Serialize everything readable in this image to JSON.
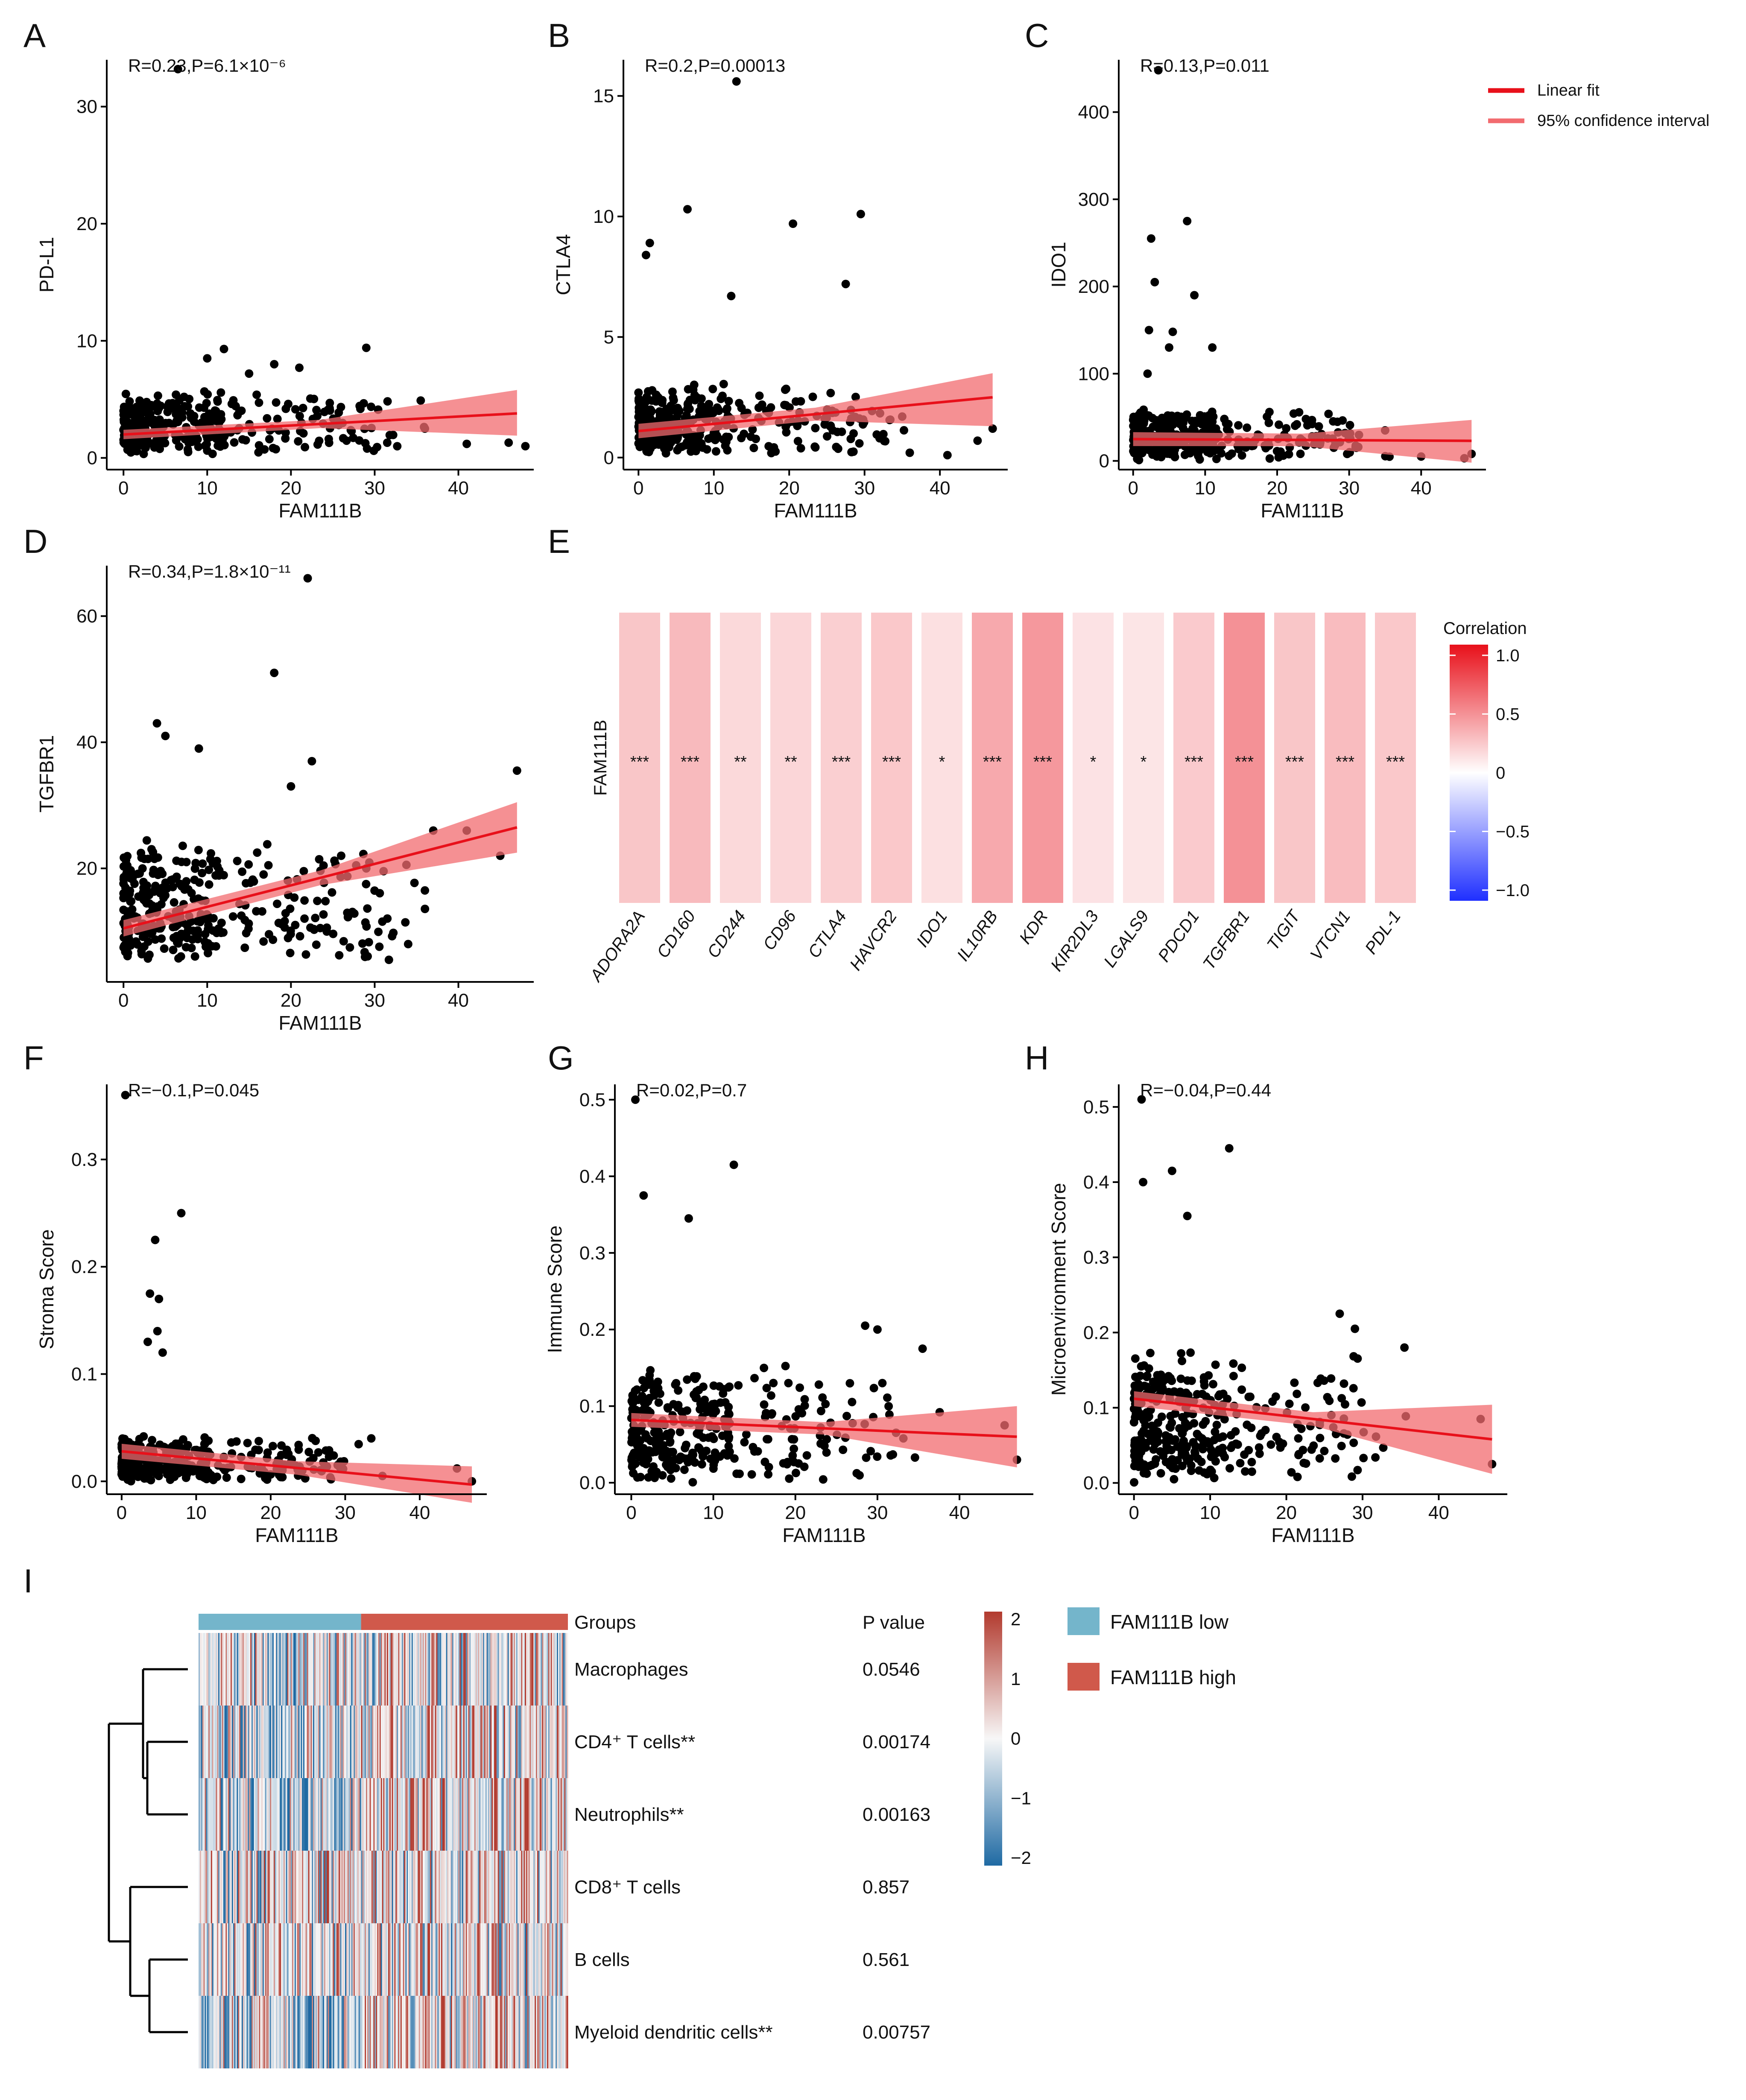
{
  "colors": {
    "fit_line": "#e8101a",
    "ci_band": "#f26b6f",
    "point": "#000000",
    "heat_pos": "#e8101a",
    "heat_neg": "#1f2fff",
    "group_low": "#74b5cb",
    "group_high": "#d0594b",
    "hm_high": "#b23a2e",
    "hm_low": "#1f6aa3"
  },
  "legend": {
    "fit_label": "Linear fit",
    "ci_label": "95% confidence interval"
  },
  "chart_data": [
    {
      "panel": "A",
      "type": "scatter",
      "title": "",
      "stat": "R=0.23,P=6.1×10⁻⁶",
      "xlabel": "FAM111B",
      "ylabel": "PD-L1",
      "xlim": [
        -2,
        49
      ],
      "ylim": [
        -1,
        34
      ],
      "xticks": [
        0,
        10,
        20,
        30,
        40
      ],
      "yticks": [
        0,
        10,
        20,
        30
      ],
      "fit": {
        "x": [
          0,
          47
        ],
        "y": [
          2.0,
          3.8
        ]
      },
      "ci": {
        "lower": [
          1.6,
          1.9
        ],
        "upper": [
          2.4,
          5.8
        ]
      },
      "n_points": 340,
      "seed": 11,
      "base": 0.2,
      "scale": 2.5,
      "cap": 9.6,
      "outliers": [
        [
          6.5,
          33.2
        ],
        [
          10,
          8.5
        ],
        [
          12,
          9.3
        ],
        [
          15,
          7.2
        ],
        [
          18,
          8.0
        ],
        [
          21,
          7.7
        ],
        [
          29,
          9.4
        ],
        [
          35.5,
          4.9
        ],
        [
          36,
          2.5
        ],
        [
          41,
          1.2
        ],
        [
          46,
          1.3
        ],
        [
          48,
          1.0
        ]
      ]
    },
    {
      "panel": "B",
      "type": "scatter",
      "title": "",
      "stat": "R=0.2,P=0.00013",
      "xlabel": "FAM111B",
      "ylabel": "CTLA4",
      "xlim": [
        -2,
        49
      ],
      "ylim": [
        -0.5,
        16.5
      ],
      "xticks": [
        0,
        10,
        20,
        30,
        40
      ],
      "yticks": [
        0,
        5,
        10,
        15
      ],
      "fit": {
        "x": [
          0,
          47
        ],
        "y": [
          1.1,
          2.5
        ]
      },
      "ci": {
        "lower": [
          0.8,
          1.3
        ],
        "upper": [
          1.4,
          3.5
        ]
      },
      "n_points": 340,
      "seed": 23,
      "base": 0.05,
      "scale": 1.4,
      "cap": 5.4,
      "outliers": [
        [
          1,
          8.4
        ],
        [
          1.5,
          8.9
        ],
        [
          6.5,
          10.3
        ],
        [
          12.3,
          6.7
        ],
        [
          13,
          15.6
        ],
        [
          20.5,
          9.7
        ],
        [
          27.5,
          7.2
        ],
        [
          29.5,
          10.1
        ],
        [
          32,
          0.8
        ],
        [
          35,
          1.7
        ],
        [
          36,
          0.2
        ],
        [
          41,
          0.1
        ],
        [
          45,
          0.7
        ],
        [
          47,
          1.2
        ]
      ]
    },
    {
      "panel": "C",
      "type": "scatter",
      "title": "",
      "stat": "R=0.13,P=0.011",
      "xlabel": "FAM111B",
      "ylabel": "IDO1",
      "xlim": [
        -2,
        49
      ],
      "ylim": [
        -10,
        460
      ],
      "xticks": [
        0,
        10,
        20,
        30,
        40
      ],
      "yticks": [
        0,
        100,
        200,
        300,
        400
      ],
      "fit": {
        "x": [
          0,
          47
        ],
        "y": [
          25,
          23
        ]
      },
      "ci": {
        "lower": [
          17,
          -2
        ],
        "upper": [
          33,
          47
        ]
      },
      "n_points": 340,
      "seed": 37,
      "base": 0.5,
      "scale": 28,
      "cap": 80,
      "outliers": [
        [
          2,
          100
        ],
        [
          2.2,
          150
        ],
        [
          2.5,
          255
        ],
        [
          3,
          205
        ],
        [
          3.5,
          448
        ],
        [
          5,
          130
        ],
        [
          5.5,
          148
        ],
        [
          7.5,
          275
        ],
        [
          8.5,
          190
        ],
        [
          11,
          130
        ],
        [
          21,
          30
        ],
        [
          24,
          48
        ],
        [
          31,
          15
        ],
        [
          35,
          35
        ],
        [
          40,
          5
        ],
        [
          46,
          3
        ],
        [
          47,
          8
        ]
      ]
    },
    {
      "panel": "D",
      "type": "scatter",
      "title": "",
      "stat": "R=0.34,P=1.8×10⁻¹¹",
      "xlabel": "FAM111B",
      "ylabel": "TGFBR1",
      "xlim": [
        -2,
        49
      ],
      "ylim": [
        2,
        68
      ],
      "xticks": [
        0,
        10,
        20,
        30,
        40
      ],
      "yticks": [
        20,
        40,
        60
      ],
      "fit": {
        "x": [
          0,
          47
        ],
        "y": [
          10.5,
          26.5
        ]
      },
      "ci": {
        "lower": [
          9.2,
          22.5
        ],
        "upper": [
          11.8,
          30.5
        ]
      },
      "n_points": 340,
      "seed": 51,
      "base": 5,
      "scale": 9,
      "cap": 30,
      "outliers": [
        [
          4,
          43
        ],
        [
          5,
          41
        ],
        [
          9,
          39
        ],
        [
          18,
          51
        ],
        [
          22,
          66
        ],
        [
          22.5,
          37
        ],
        [
          20,
          33
        ],
        [
          26,
          22
        ],
        [
          29,
          20
        ],
        [
          34,
          8
        ],
        [
          36,
          16.5
        ],
        [
          37,
          26
        ],
        [
          41,
          26
        ],
        [
          45,
          22
        ],
        [
          47,
          35.5
        ]
      ]
    },
    {
      "panel": "E",
      "type": "heatmap",
      "title": "",
      "row_label": "FAM111B",
      "legend_title": "Correlation",
      "legend_ticks": [
        "1.0",
        "0.5",
        "0",
        "−0.5",
        "−1.0"
      ],
      "range": [
        -1,
        1
      ],
      "genes": [
        "ADORA2A",
        "CD160",
        "CD244",
        "CD96",
        "CTLA4",
        "HAVCR2",
        "IDO1",
        "IL10RB",
        "KDR",
        "KIR2DL3",
        "LGALS9",
        "PDCD1",
        "TGFBR1",
        "TIGIT",
        "VTCN1",
        "PDL-1"
      ],
      "values": [
        0.24,
        0.29,
        0.16,
        0.17,
        0.2,
        0.23,
        0.13,
        0.36,
        0.43,
        0.12,
        0.11,
        0.22,
        0.46,
        0.24,
        0.28,
        0.23
      ],
      "significance": [
        "***",
        "***",
        "**",
        "**",
        "***",
        "***",
        "*",
        "***",
        "***",
        "*",
        "*",
        "***",
        "***",
        "***",
        "***",
        "***"
      ]
    },
    {
      "panel": "F",
      "type": "scatter",
      "title": "",
      "stat": "R=−0.1,P=0.045",
      "xlabel": "FAM111B",
      "ylabel": "Stroma Score",
      "xlim": [
        -2,
        49
      ],
      "ylim": [
        -0.012,
        0.37
      ],
      "xticks": [
        0,
        10,
        20,
        30,
        40
      ],
      "yticks": [
        0.0,
        0.1,
        0.2,
        0.3
      ],
      "fit": {
        "x": [
          0,
          47
        ],
        "y": [
          0.028,
          -0.003
        ]
      },
      "ci": {
        "lower": [
          0.021,
          -0.02
        ],
        "upper": [
          0.035,
          0.014
        ]
      },
      "n_points": 340,
      "seed": 67,
      "base": 0.0,
      "scale": 0.02,
      "cap": 0.085,
      "outliers": [
        [
          0.5,
          0.36
        ],
        [
          3.5,
          0.13
        ],
        [
          4.5,
          0.225
        ],
        [
          3.8,
          0.175
        ],
        [
          5,
          0.17
        ],
        [
          4.8,
          0.14
        ],
        [
          5.5,
          0.12
        ],
        [
          8,
          0.25
        ],
        [
          33.5,
          0.04
        ],
        [
          35,
          0.005
        ],
        [
          45,
          0.012
        ],
        [
          47,
          0.0
        ]
      ]
    },
    {
      "panel": "G",
      "type": "scatter",
      "title": "",
      "stat": "R=0.02,P=0.7",
      "xlabel": "FAM111B",
      "ylabel": "Immune Score",
      "xlim": [
        -2,
        49
      ],
      "ylim": [
        -0.015,
        0.52
      ],
      "xticks": [
        0,
        10,
        20,
        30,
        40
      ],
      "yticks": [
        0.0,
        0.1,
        0.2,
        0.3,
        0.4,
        0.5
      ],
      "fit": {
        "x": [
          0,
          47
        ],
        "y": [
          0.082,
          0.06
        ]
      },
      "ci": {
        "lower": [
          0.073,
          0.02
        ],
        "upper": [
          0.091,
          0.1
        ]
      },
      "n_points": 340,
      "seed": 79,
      "base": 0.0,
      "scale": 0.07,
      "cap": 0.34,
      "outliers": [
        [
          0.5,
          0.5
        ],
        [
          1.5,
          0.375
        ],
        [
          12.5,
          0.415
        ],
        [
          7,
          0.345
        ],
        [
          28.5,
          0.205
        ],
        [
          30,
          0.2
        ],
        [
          35.5,
          0.175
        ],
        [
          45.5,
          0.075
        ],
        [
          47,
          0.03
        ]
      ]
    },
    {
      "panel": "H",
      "type": "scatter",
      "title": "",
      "stat": "R=−0.04,P=0.44",
      "xlabel": "FAM111B",
      "ylabel": "Microenvironment Score",
      "xlim": [
        -2,
        49
      ],
      "ylim": [
        -0.015,
        0.53
      ],
      "xticks": [
        0,
        10,
        20,
        30,
        40
      ],
      "yticks": [
        0.0,
        0.1,
        0.2,
        0.3,
        0.4,
        0.5
      ],
      "fit": {
        "x": [
          0,
          47
        ],
        "y": [
          0.112,
          0.058
        ]
      },
      "ci": {
        "lower": [
          0.102,
          0.012
        ],
        "upper": [
          0.122,
          0.104
        ]
      },
      "n_points": 340,
      "seed": 97,
      "base": 0.0,
      "scale": 0.08,
      "cap": 0.36,
      "outliers": [
        [
          1,
          0.51
        ],
        [
          1.2,
          0.4
        ],
        [
          5,
          0.415
        ],
        [
          7,
          0.355
        ],
        [
          12.5,
          0.445
        ],
        [
          27,
          0.225
        ],
        [
          29,
          0.205
        ],
        [
          35.5,
          0.18
        ],
        [
          45.5,
          0.085
        ],
        [
          47,
          0.025
        ]
      ]
    },
    {
      "panel": "I",
      "type": "heatmap",
      "title": "",
      "groups_label": "Groups",
      "pvalue_header": "P value",
      "groups": [
        "FAM111B low",
        "FAM111B high"
      ],
      "low_fraction": 0.44,
      "scale_ticks": [
        "2",
        "1",
        "0",
        "−1",
        "−2"
      ],
      "range": [
        -2,
        2
      ],
      "rows": [
        {
          "label": "Macrophages",
          "p": "0.0546",
          "trend": 0.2
        },
        {
          "label": "CD4⁺ T cells**",
          "p": "0.00174",
          "trend": 0.5
        },
        {
          "label": "Neutrophils**",
          "p": "0.00163",
          "trend": 0.5
        },
        {
          "label": "CD8⁺ T cells",
          "p": "0.857",
          "trend": 0.05
        },
        {
          "label": "B cells",
          "p": "0.561",
          "trend": 0.1
        },
        {
          "label": "Myeloid dendritic cells**",
          "p": "0.00757",
          "trend": 0.45
        }
      ]
    }
  ]
}
